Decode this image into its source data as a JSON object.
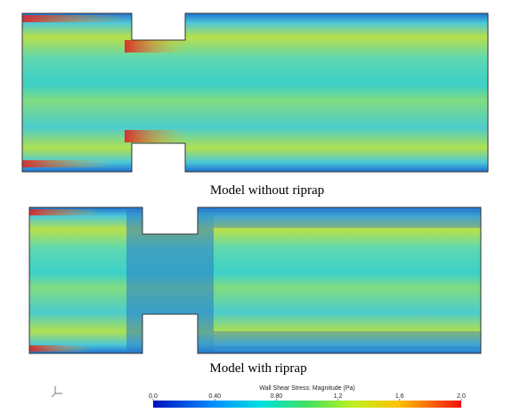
{
  "figure": {
    "panels": [
      {
        "caption": "Model without riprap"
      },
      {
        "caption": "Model with riprap"
      }
    ],
    "colorbar": {
      "title": "Wall Shear Stress: Magnitude (Pa)",
      "lim": [
        0,
        2
      ],
      "ticks": [
        {
          "value": 0,
          "label": "0.0"
        },
        {
          "value": 0.4,
          "label": "0.40"
        },
        {
          "value": 0.8,
          "label": "0.80"
        },
        {
          "value": 1.2,
          "label": "1.2"
        },
        {
          "value": 1.6,
          "label": "1.6"
        },
        {
          "value": 2,
          "label": "2.0"
        }
      ]
    }
  }
}
